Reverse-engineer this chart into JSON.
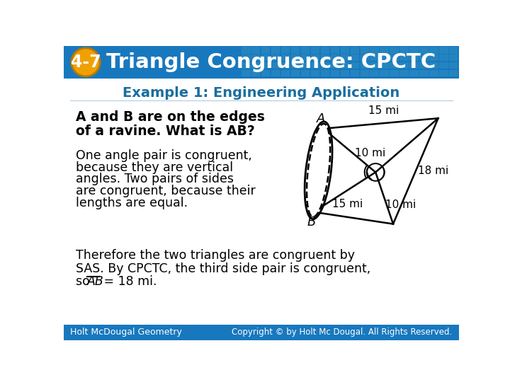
{
  "header_bg_color": "#1878be",
  "header_text": "Triangle Congruence: CPCTC",
  "badge_bg_color": "#f0a000",
  "badge_text": "4-7",
  "footer_bg_color": "#1878be",
  "footer_left": "Holt McDougal Geometry",
  "footer_right": "Copyright © by Holt Mc Dougal. All Rights Reserved.",
  "subtitle_text": "Example 1: Engineering Application",
  "subtitle_color": "#1a6e9e",
  "bold_text_line1": "A and B are on the edges",
  "bold_text_line2": "of a ravine. What is AB?",
  "body_lines": [
    "One angle pair is congruent,",
    "because they are vertical",
    "angles. Two pairs of sides",
    "are congruent, because their",
    "lengths are equal."
  ],
  "conc_line1": "Therefore the two triangles are congruent by",
  "conc_line2": "SAS. By CPCTC, the third side pair is congruent,",
  "conc_line3_pre": "so ",
  "conc_line3_ab": "AB",
  "conc_line3_post": " = 18 mi.",
  "diag_A": "A",
  "diag_B": "B",
  "diag_15top": "15 mi",
  "diag_10top": "10 mi",
  "diag_18": "18 mi",
  "diag_15bot": "15 mi",
  "diag_10bot": "10 mi",
  "tile_color": "#2e8fc0"
}
